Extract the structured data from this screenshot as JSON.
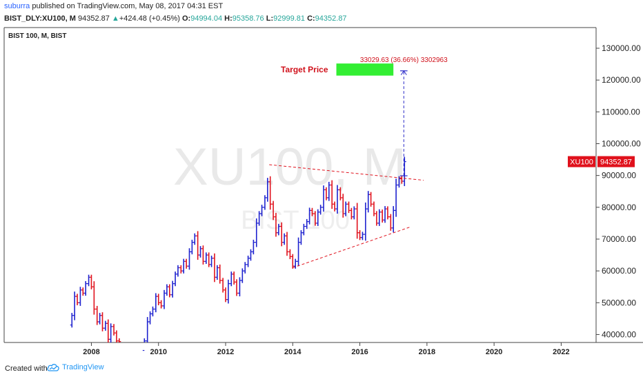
{
  "header": {
    "user": "suburra",
    "published_text": "published on TradingView.com, May 08, 2017 04:31 EST",
    "symbol_prefix": "BIST_DLY:XU100, M",
    "last": "94352.87",
    "change_arrow": "▲",
    "change": "+424.48 (+0.45%)",
    "o_label": "O:",
    "o_value": "94994.04",
    "h_label": "H:",
    "h_value": "95358.76",
    "l_label": "L:",
    "l_value": "92999.81",
    "c_label": "C:",
    "c_value": "94352.87"
  },
  "footer": {
    "created_with": "Created with",
    "brand": "TradingView",
    "logo_icon": "tradingview-cloud-icon"
  },
  "colors": {
    "up": "#1e22cf",
    "down": "#e0111c",
    "target": "#33ee33",
    "accent_red": "#d0101a",
    "projection": "#2a2ac8"
  },
  "chart_data": {
    "type": "candlestick",
    "title": "BIST 100, M, BIST",
    "watermark_main": "XU100, M",
    "watermark_sub": "BIST 100",
    "y_ticks": [
      40000,
      50000,
      60000,
      70000,
      80000,
      90000,
      100000,
      110000,
      120000,
      130000
    ],
    "y_tick_labels": [
      "40000.00",
      "50000.00",
      "60000.00",
      "70000.00",
      "80000.00",
      "90000.00",
      "100000.00",
      "110000.00",
      "120000.00",
      "130000.00"
    ],
    "ylim": [
      37500,
      136500
    ],
    "x_ticks": [
      "2008",
      "2010",
      "2012",
      "2014",
      "2016",
      "2018",
      "2020",
      "2022"
    ],
    "x_tick_values": [
      2008,
      2010,
      2012,
      2014,
      2016,
      2018,
      2020,
      2022
    ],
    "xlim": [
      2005.4,
      2023.04
    ],
    "price_label": {
      "name": "XU100",
      "value": "94352.87"
    },
    "target_label": "Target Price",
    "projection_text": "33029.63 (36.66%) 3302963",
    "projection": {
      "x0": 2017.2,
      "x1": 2017.42,
      "base": 89900,
      "target": 122900
    },
    "trendlines": [
      {
        "x0": 2013.3,
        "y0": 93400,
        "x1": 2017.9,
        "y1": 88500,
        "style": "dashed"
      },
      {
        "x0": 2014.0,
        "y0": 61000,
        "x1": 2017.5,
        "y1": 73800,
        "style": "dashed"
      }
    ],
    "target_box": {
      "x0": 2015.3,
      "x1": 2017.0,
      "y0": 121400,
      "y1": 125200
    },
    "series_segments": [
      [
        [
          2007.42,
          46000
        ],
        [
          2007.5,
          52000
        ],
        [
          2007.58,
          50000
        ],
        [
          2007.67,
          54000
        ],
        [
          2007.75,
          53000
        ],
        [
          2007.83,
          56000
        ],
        [
          2007.92,
          58000
        ],
        [
          2008.0,
          55000
        ],
        [
          2008.08,
          48000
        ],
        [
          2008.17,
          44000
        ],
        [
          2008.25,
          46000
        ],
        [
          2008.33,
          42000
        ],
        [
          2008.42,
          43500
        ],
        [
          2008.5,
          38500
        ],
        [
          2008.58,
          42500
        ],
        [
          2008.67,
          40500
        ],
        [
          2008.75,
          38000
        ],
        [
          2008.83,
          37800
        ]
      ],
      [
        [
          2009.58,
          38000
        ],
        [
          2009.67,
          44000
        ],
        [
          2009.75,
          46500
        ],
        [
          2009.83,
          48000
        ],
        [
          2009.92,
          52000
        ],
        [
          2010.0,
          50000
        ],
        [
          2010.08,
          49000
        ],
        [
          2010.17,
          53000
        ],
        [
          2010.25,
          55000
        ],
        [
          2010.33,
          52500
        ],
        [
          2010.42,
          56000
        ],
        [
          2010.5,
          59000
        ],
        [
          2010.58,
          61000
        ],
        [
          2010.67,
          60000
        ],
        [
          2010.75,
          63000
        ],
        [
          2010.83,
          61500
        ],
        [
          2010.92,
          66000
        ],
        [
          2011.0,
          69000
        ],
        [
          2011.08,
          71000
        ],
        [
          2011.17,
          65000
        ],
        [
          2011.25,
          67000
        ],
        [
          2011.33,
          63000
        ],
        [
          2011.42,
          65000
        ],
        [
          2011.5,
          62000
        ],
        [
          2011.58,
          64000
        ],
        [
          2011.67,
          58000
        ],
        [
          2011.75,
          61000
        ],
        [
          2011.83,
          57000
        ],
        [
          2011.92,
          54000
        ],
        [
          2012.0,
          51000
        ],
        [
          2012.08,
          56000
        ],
        [
          2012.17,
          59000
        ],
        [
          2012.25,
          56500
        ],
        [
          2012.33,
          53000
        ],
        [
          2012.42,
          57000
        ],
        [
          2012.5,
          60000
        ],
        [
          2012.58,
          62000
        ],
        [
          2012.67,
          64000
        ],
        [
          2012.75,
          66000
        ],
        [
          2012.83,
          69000
        ],
        [
          2012.92,
          75000
        ],
        [
          2013.0,
          78000
        ],
        [
          2013.08,
          80000
        ],
        [
          2013.17,
          83000
        ],
        [
          2013.25,
          88000
        ],
        [
          2013.33,
          81000
        ],
        [
          2013.42,
          77000
        ],
        [
          2013.5,
          72000
        ],
        [
          2013.58,
          74000
        ],
        [
          2013.67,
          69000
        ],
        [
          2013.75,
          71000
        ],
        [
          2013.83,
          66000
        ],
        [
          2013.92,
          64500
        ],
        [
          2014.0,
          61500
        ],
        [
          2014.08,
          63000
        ],
        [
          2014.17,
          69000
        ],
        [
          2014.25,
          72000
        ],
        [
          2014.33,
          74000
        ],
        [
          2014.42,
          75500
        ],
        [
          2014.5,
          79000
        ],
        [
          2014.58,
          78000
        ],
        [
          2014.67,
          75000
        ],
        [
          2014.75,
          78500
        ],
        [
          2014.83,
          80000
        ],
        [
          2014.92,
          85500
        ],
        [
          2015.0,
          83000
        ],
        [
          2015.08,
          87000
        ],
        [
          2015.17,
          81000
        ],
        [
          2015.25,
          79500
        ],
        [
          2015.33,
          85500
        ],
        [
          2015.42,
          83000
        ],
        [
          2015.5,
          78000
        ],
        [
          2015.58,
          81000
        ],
        [
          2015.67,
          79000
        ],
        [
          2015.75,
          77000
        ],
        [
          2015.83,
          79500
        ],
        [
          2015.92,
          72000
        ],
        [
          2016.0,
          70500
        ],
        [
          2016.08,
          71500
        ],
        [
          2016.17,
          79500
        ],
        [
          2016.25,
          84000
        ],
        [
          2016.33,
          81000
        ],
        [
          2016.42,
          78000
        ],
        [
          2016.5,
          75000
        ],
        [
          2016.58,
          78500
        ],
        [
          2016.67,
          76000
        ],
        [
          2016.75,
          79500
        ],
        [
          2016.83,
          77000
        ],
        [
          2016.92,
          73500
        ],
        [
          2017.0,
          79000
        ],
        [
          2017.08,
          87000
        ],
        [
          2017.17,
          89000
        ],
        [
          2017.25,
          88200
        ],
        [
          2017.33,
          94352
        ]
      ]
    ]
  }
}
